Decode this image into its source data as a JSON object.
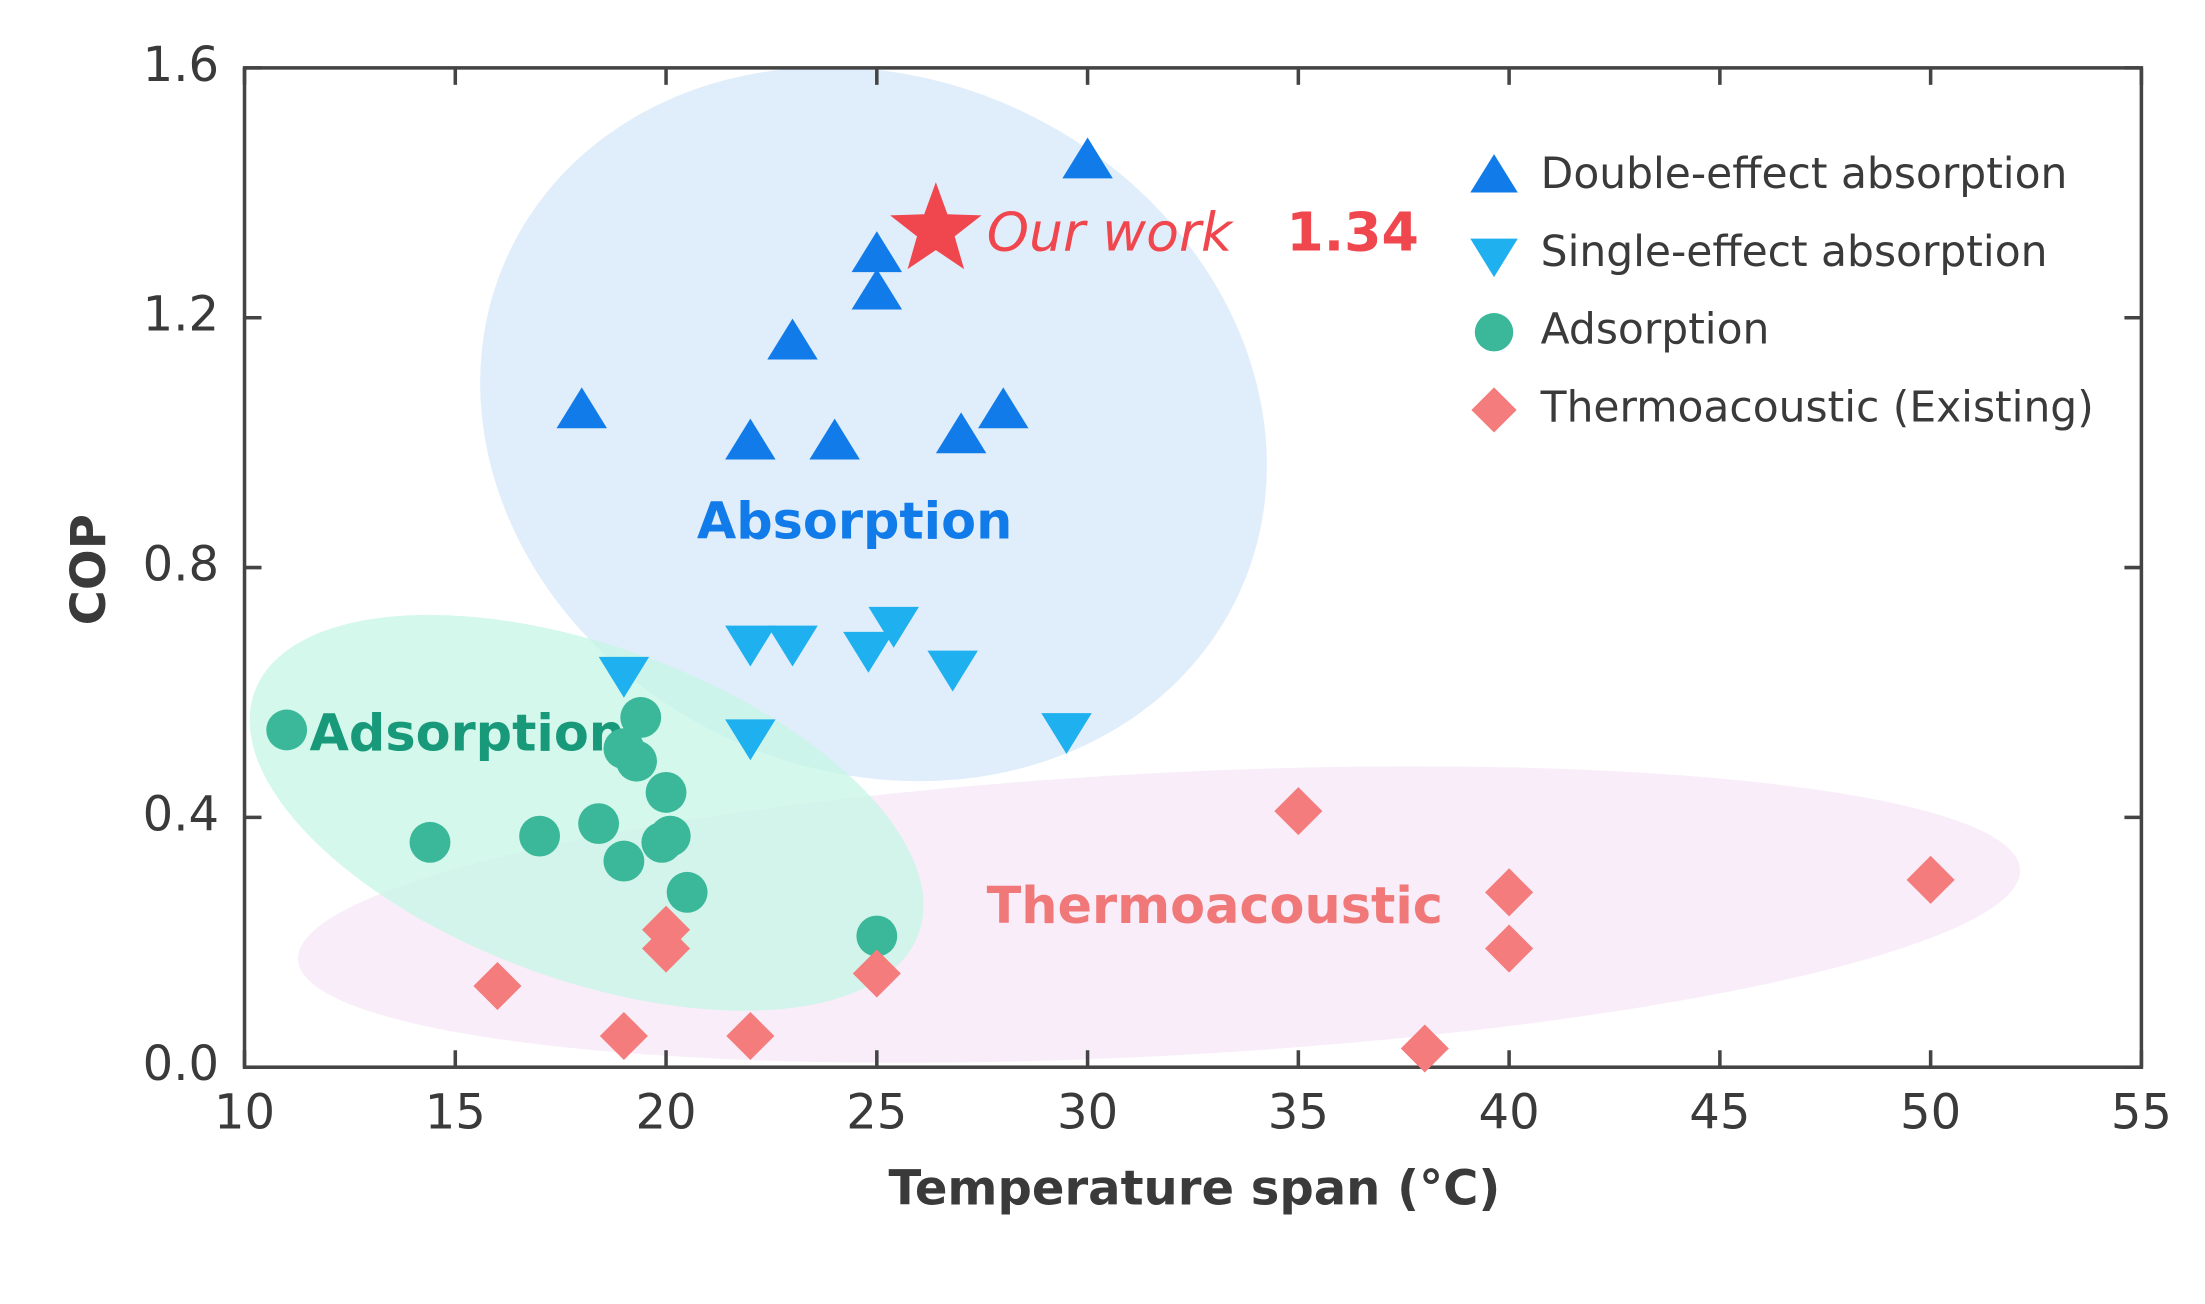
{
  "chart_data": {
    "type": "scatter",
    "xlabel": "Temperature span (°C)",
    "ylabel": "COP",
    "xlim": [
      10,
      55
    ],
    "ylim": [
      0,
      1.6
    ],
    "xticks": [
      10,
      15,
      20,
      25,
      30,
      35,
      40,
      45,
      50,
      55
    ],
    "yticks": [
      {
        "value": 0,
        "label": "0.0"
      },
      0.4,
      0.8,
      1.2,
      1.6
    ],
    "legend": "upper right",
    "series": [
      {
        "name": "Double-effect absorption",
        "color": "#117ce9",
        "marker": "triangle-up",
        "x": [
          18,
          22,
          23,
          24,
          25,
          25,
          27,
          28,
          30
        ],
        "values": [
          1.05,
          1.0,
          1.16,
          1.0,
          1.3,
          1.24,
          1.01,
          1.05,
          1.45
        ]
      },
      {
        "name": "Single-effect absorption",
        "color": "#1fb0ef",
        "marker": "triangle-down",
        "x": [
          19,
          22,
          22,
          23,
          24.8,
          25.4,
          26.8,
          29.5
        ],
        "values": [
          0.63,
          0.53,
          0.68,
          0.68,
          0.67,
          0.71,
          0.64,
          0.54
        ]
      },
      {
        "name": "Adsorption",
        "color": "#3bb89a",
        "marker": "circle",
        "x": [
          11,
          14.4,
          17,
          18.4,
          19,
          19,
          19.3,
          19.4,
          19.9,
          20,
          20.1,
          20.5,
          25
        ],
        "values": [
          0.54,
          0.36,
          0.37,
          0.39,
          0.33,
          0.51,
          0.49,
          0.56,
          0.36,
          0.44,
          0.37,
          0.28,
          0.21
        ]
      },
      {
        "name": "Thermoacoustic (Existing)",
        "color": "#f47c7c",
        "marker": "diamond",
        "x": [
          16,
          19,
          20,
          20,
          22,
          25,
          35,
          38,
          40,
          40,
          50
        ],
        "values": [
          0.13,
          0.05,
          0.22,
          0.19,
          0.05,
          0.15,
          0.41,
          0.03,
          0.28,
          0.19,
          0.3
        ]
      }
    ],
    "highlight": {
      "label": "Our work",
      "x": 26.4,
      "y": 1.34,
      "color": "#f0464d"
    },
    "regions": [
      {
        "label": "Absorption",
        "color": "#117ce9"
      },
      {
        "label": "Adsorption",
        "color": "#17997a"
      },
      {
        "label": "Thermoacoustic",
        "color": "#f07878"
      }
    ]
  }
}
